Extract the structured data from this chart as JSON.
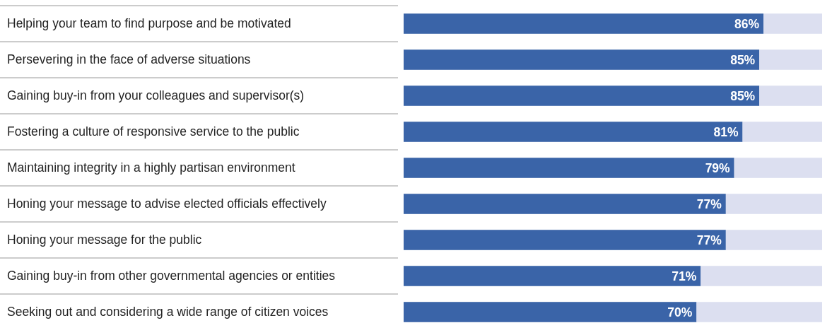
{
  "chart_data": {
    "type": "bar",
    "orientation": "horizontal",
    "stacked": true,
    "tick_labels": "y",
    "categories": [
      "Helping your team to find purpose and be motivated",
      "Persevering in the face of adverse situations",
      "Gaining buy-in from your colleagues and supervisor(s)",
      "Fostering a culture of responsive service to the public",
      "Maintaining integrity in a highly partisan environment",
      "Honing your message to advise elected officials effectively",
      "Honing your message for the public",
      "Gaining buy-in from other governmental agencies or entities",
      "Seeking out and considering a wide range of citizen voices"
    ],
    "xlim": [
      0,
      100
    ],
    "series": [
      {
        "color": "#3a64a8",
        "values": [
          86,
          85,
          85,
          81,
          79,
          77,
          77,
          71,
          70
        ],
        "value_labels": [
          "86%",
          "85%",
          "85%",
          "81%",
          "79%",
          "77%",
          "77%",
          "71%",
          "70%"
        ]
      },
      {
        "color": "#dcdff0",
        "values": [
          14,
          15,
          15,
          19,
          21,
          23,
          23,
          29,
          30
        ]
      }
    ]
  }
}
